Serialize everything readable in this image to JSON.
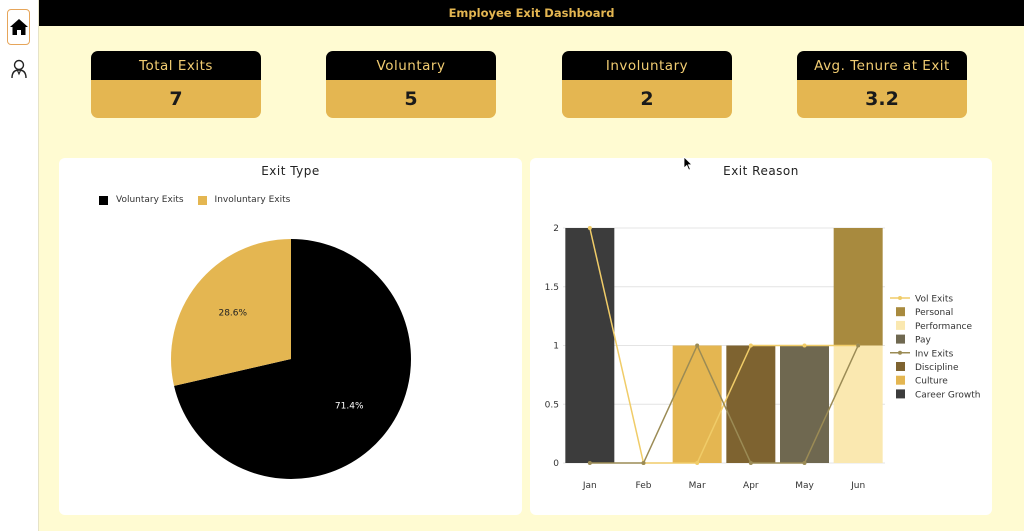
{
  "header": {
    "title": "Employee Exit Dashboard"
  },
  "sidebar": {
    "items": [
      {
        "icon": "home-icon"
      },
      {
        "icon": "employee-icon"
      }
    ]
  },
  "kpis": [
    {
      "label": "Total Exits",
      "value": "7"
    },
    {
      "label": "Voluntary",
      "value": "5"
    },
    {
      "label": "Involuntary",
      "value": "2"
    },
    {
      "label": "Avg. Tenure at Exit",
      "value": "3.2"
    }
  ],
  "colors": {
    "black": "#000000",
    "gold": "#e4b651",
    "personal": "#a88a3e",
    "performance": "#fae8b0",
    "pay": "#6f6850",
    "discipline": "#7e6330",
    "culture": "#e4b651",
    "career_growth": "#3c3c3c",
    "vol_line": "#f0cc68",
    "inv_line": "#9b8b55"
  },
  "chart_data": [
    {
      "type": "pie",
      "title": "Exit Type",
      "legend_position": "top-left",
      "slices": [
        {
          "name": "Voluntary Exits",
          "value": 71.4,
          "label": "71.4%",
          "color": "#000000"
        },
        {
          "name": "Involuntary Exits",
          "value": 28.6,
          "label": "28.6%",
          "color": "#e4b651"
        }
      ]
    },
    {
      "type": "bar",
      "title": "Exit Reason",
      "legend_position": "right",
      "categories": [
        "Jan",
        "Feb",
        "Mar",
        "Apr",
        "May",
        "Jun"
      ],
      "ylim": [
        0,
        2
      ],
      "yticks": [
        "0",
        "0.5",
        "1",
        "1.5",
        "2"
      ],
      "yticks_values": [
        0,
        0.5,
        1,
        1.5,
        2
      ],
      "grid": true,
      "legend_order": [
        "Vol Exits",
        "Personal",
        "Performance",
        "Pay",
        "Inv Exits",
        "Discipline",
        "Culture",
        "Career Growth"
      ],
      "bar_series": [
        {
          "name": "Career Growth",
          "color": "#3c3c3c",
          "values": [
            2,
            0,
            0,
            0,
            0,
            0
          ]
        },
        {
          "name": "Culture",
          "color": "#e4b651",
          "values": [
            0,
            0,
            1,
            0,
            0,
            0
          ]
        },
        {
          "name": "Discipline",
          "color": "#7e6330",
          "values": [
            0,
            0,
            0,
            1,
            0,
            0
          ]
        },
        {
          "name": "Pay",
          "color": "#6f6850",
          "values": [
            0,
            0,
            0,
            0,
            1,
            0
          ]
        },
        {
          "name": "Performance",
          "color": "#fae8b0",
          "values": [
            0,
            0,
            0,
            0,
            0,
            1
          ]
        },
        {
          "name": "Personal",
          "color": "#a88a3e",
          "values": [
            0,
            0,
            0,
            0,
            0,
            1
          ]
        }
      ],
      "line_series": [
        {
          "name": "Vol Exits",
          "color": "#f0cc68",
          "values": [
            2,
            0,
            0,
            1,
            1,
            1
          ]
        },
        {
          "name": "Inv Exits",
          "color": "#9b8b55",
          "values": [
            0,
            0,
            1,
            0,
            0,
            1
          ]
        }
      ]
    }
  ]
}
